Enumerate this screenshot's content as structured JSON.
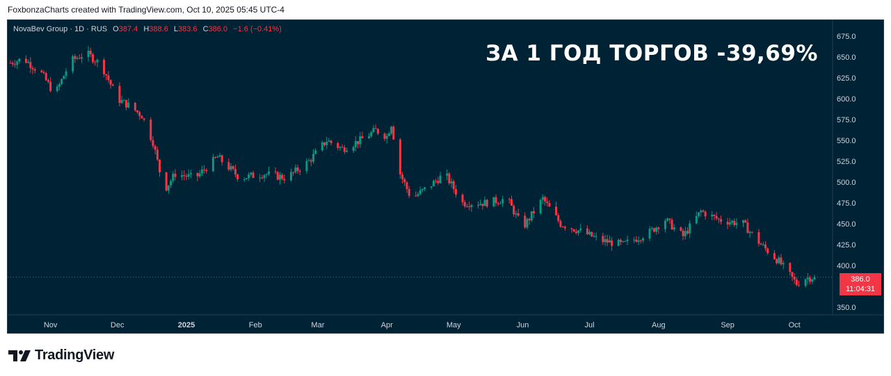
{
  "caption": "FoxbonzaCharts created with TradingView.com, Oct 10, 2025 05:45 UTC-4",
  "legend": {
    "symbol": "NovaBev Group · 1D · RUS",
    "open_label": "O",
    "open": "387.4",
    "high_label": "H",
    "high": "388.6",
    "low_label": "L",
    "low": "383.6",
    "close_label": "C",
    "close": "386.0",
    "change": "−1.6 (−0.41%)"
  },
  "headline": "ЗА 1 ГОД ТОРГОВ -39,69%",
  "price_badge": {
    "price": "386.0",
    "countdown": "11:04:31"
  },
  "brand": {
    "name": "TradingView",
    "logo_icon": "tradingview-logo-icon"
  },
  "colors": {
    "background": "#002235",
    "up": "#089981",
    "down": "#f23645",
    "axis_text": "#d1d4dc",
    "headline": "#ffffff"
  },
  "chart_data": {
    "type": "candlestick",
    "y_ticks": [
      "675.0",
      "650.0",
      "625.0",
      "600.0",
      "575.0",
      "550.0",
      "525.0",
      "500.0",
      "475.0",
      "450.0",
      "425.0",
      "400.0",
      "350.0"
    ],
    "ylim": [
      340,
      690
    ],
    "x_labels": [
      {
        "label": "Nov",
        "date": "2024-11-01"
      },
      {
        "label": "Dec",
        "date": "2024-12-01"
      },
      {
        "label": "2025",
        "date": "2025-01-01"
      },
      {
        "label": "Feb",
        "date": "2025-02-01"
      },
      {
        "label": "Mar",
        "date": "2025-03-01"
      },
      {
        "label": "Apr",
        "date": "2025-04-01"
      },
      {
        "label": "May",
        "date": "2025-05-01"
      },
      {
        "label": "Jun",
        "date": "2025-06-01"
      },
      {
        "label": "Jul",
        "date": "2025-07-01"
      },
      {
        "label": "Aug",
        "date": "2025-08-01"
      },
      {
        "label": "Sep",
        "date": "2025-09-01"
      },
      {
        "label": "Oct",
        "date": "2025-10-01"
      }
    ],
    "x_range": [
      "2024-10-14",
      "2025-10-10"
    ],
    "last_price": 386.0,
    "close_path": [
      {
        "date": "2024-10-14",
        "close": 643
      },
      {
        "date": "2024-10-20",
        "close": 648
      },
      {
        "date": "2024-10-28",
        "close": 630
      },
      {
        "date": "2024-11-03",
        "close": 605
      },
      {
        "date": "2024-11-10",
        "close": 645
      },
      {
        "date": "2024-11-17",
        "close": 655
      },
      {
        "date": "2024-11-24",
        "close": 640
      },
      {
        "date": "2024-12-01",
        "close": 600
      },
      {
        "date": "2024-12-06",
        "close": 592
      },
      {
        "date": "2024-12-12",
        "close": 580
      },
      {
        "date": "2024-12-17",
        "close": 548
      },
      {
        "date": "2024-12-22",
        "close": 490
      },
      {
        "date": "2024-12-27",
        "close": 510
      },
      {
        "date": "2025-01-05",
        "close": 505
      },
      {
        "date": "2025-01-15",
        "close": 530
      },
      {
        "date": "2025-01-25",
        "close": 505
      },
      {
        "date": "2025-02-05",
        "close": 510
      },
      {
        "date": "2025-02-15",
        "close": 505
      },
      {
        "date": "2025-02-25",
        "close": 525
      },
      {
        "date": "2025-03-05",
        "close": 550
      },
      {
        "date": "2025-03-12",
        "close": 540
      },
      {
        "date": "2025-03-20",
        "close": 550
      },
      {
        "date": "2025-03-27",
        "close": 562
      },
      {
        "date": "2025-04-01",
        "close": 555
      },
      {
        "date": "2025-04-03",
        "close": 570
      },
      {
        "date": "2025-04-07",
        "close": 510
      },
      {
        "date": "2025-04-12",
        "close": 480
      },
      {
        "date": "2025-04-20",
        "close": 495
      },
      {
        "date": "2025-04-27",
        "close": 510
      },
      {
        "date": "2025-05-05",
        "close": 475
      },
      {
        "date": "2025-05-15",
        "close": 475
      },
      {
        "date": "2025-05-25",
        "close": 480
      },
      {
        "date": "2025-06-01",
        "close": 445
      },
      {
        "date": "2025-06-10",
        "close": 480
      },
      {
        "date": "2025-06-18",
        "close": 450
      },
      {
        "date": "2025-06-28",
        "close": 440
      },
      {
        "date": "2025-07-06",
        "close": 430
      },
      {
        "date": "2025-07-16",
        "close": 425
      },
      {
        "date": "2025-07-28",
        "close": 440
      },
      {
        "date": "2025-08-04",
        "close": 455
      },
      {
        "date": "2025-08-12",
        "close": 435
      },
      {
        "date": "2025-08-20",
        "close": 465
      },
      {
        "date": "2025-08-28",
        "close": 455
      },
      {
        "date": "2025-09-08",
        "close": 450
      },
      {
        "date": "2025-09-16",
        "close": 425
      },
      {
        "date": "2025-09-24",
        "close": 405
      },
      {
        "date": "2025-10-02",
        "close": 378
      },
      {
        "date": "2025-10-06",
        "close": 385
      },
      {
        "date": "2025-10-10",
        "close": 386
      }
    ]
  }
}
